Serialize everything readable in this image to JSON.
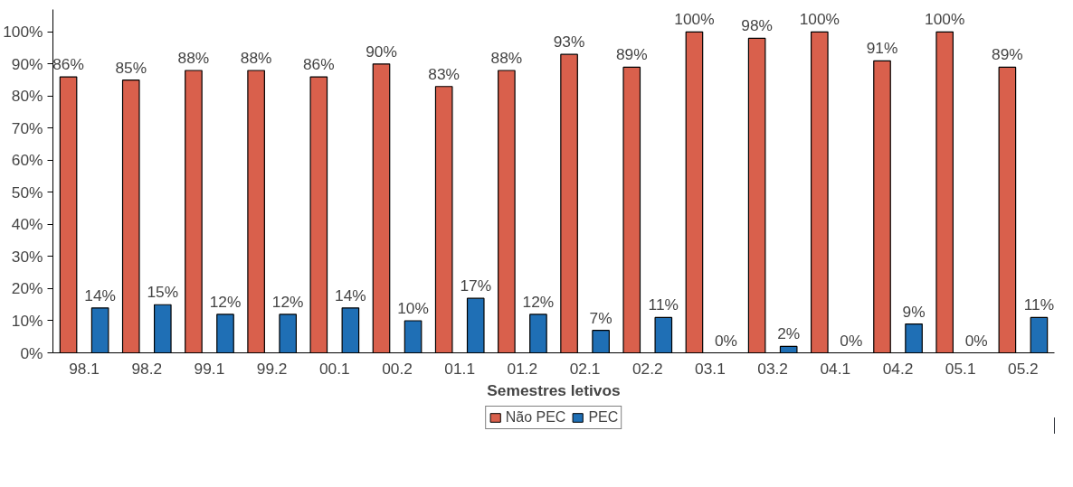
{
  "chart_data": {
    "type": "bar",
    "xlabel": "Semestres letivos",
    "categories": [
      "98.1",
      "98.2",
      "99.1",
      "99.2",
      "00.1",
      "00.2",
      "01.1",
      "01.2",
      "02.1",
      "02.2",
      "03.1",
      "03.2",
      "04.1",
      "04.2",
      "05.1",
      "05.2"
    ],
    "series": [
      {
        "name": "Não PEC",
        "color": "#d9604c",
        "values": [
          86,
          85,
          88,
          88,
          86,
          90,
          83,
          88,
          93,
          89,
          100,
          98,
          100,
          91,
          100,
          89
        ],
        "value_labels": [
          "86%",
          "85%",
          "88%",
          "88%",
          "86%",
          "90%",
          "83%",
          "88%",
          "93%",
          "89%",
          "100%",
          "98%",
          "100%",
          "91%",
          "100%",
          "89%"
        ]
      },
      {
        "name": "PEC",
        "color": "#1f6fb5",
        "values": [
          14,
          15,
          12,
          12,
          14,
          10,
          17,
          12,
          7,
          11,
          0,
          2,
          0,
          9,
          0,
          11
        ],
        "value_labels": [
          "14%",
          "15%",
          "12%",
          "12%",
          "14%",
          "10%",
          "17%",
          "12%",
          "7%",
          "11%",
          "0%",
          "2%",
          "0%",
          "9%",
          "0%",
          "11%"
        ]
      }
    ],
    "ylim": [
      0,
      100
    ],
    "yticks": [
      {
        "value": 0,
        "label": "0%"
      },
      {
        "value": 10,
        "label": "10%"
      },
      {
        "value": 20,
        "label": "20%"
      },
      {
        "value": 30,
        "label": "30%"
      },
      {
        "value": 40,
        "label": "40%"
      },
      {
        "value": 50,
        "label": "50%"
      },
      {
        "value": 60,
        "label": "60%"
      },
      {
        "value": 70,
        "label": "70%"
      },
      {
        "value": 80,
        "label": "80%"
      },
      {
        "value": 90,
        "label": "90%"
      },
      {
        "value": 100,
        "label": "100%"
      }
    ],
    "grid": false,
    "legend": "bottom"
  }
}
